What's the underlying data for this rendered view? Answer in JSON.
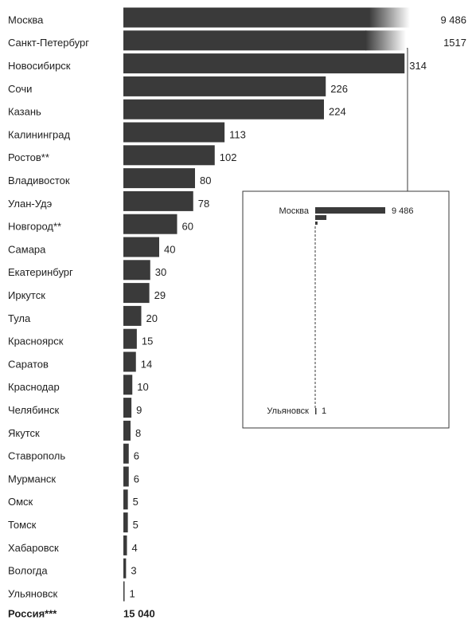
{
  "chart_data": {
    "type": "bar",
    "orientation": "horizontal",
    "categories": [
      "Москва",
      "Санкт-Петербург",
      "Новосибирск",
      "Сочи",
      "Казань",
      "Калининград",
      "Ростов**",
      "Владивосток",
      "Улан-Удэ",
      "Новгород**",
      "Самара",
      "Екатеринбург",
      "Иркутск",
      "Тула",
      "Красноярск",
      "Саратов",
      "Краснодар",
      "Челябинск",
      "Якутск",
      "Ставрополь",
      "Мурманск",
      "Омск",
      "Томск",
      "Хабаровск",
      "Вологда",
      "Ульяновск"
    ],
    "values": [
      9486,
      1517,
      314,
      226,
      224,
      113,
      102,
      80,
      78,
      60,
      40,
      30,
      29,
      20,
      15,
      14,
      10,
      9,
      8,
      6,
      6,
      5,
      5,
      4,
      3,
      1
    ],
    "value_labels": [
      "9 486",
      "1517",
      "314",
      "226",
      "224",
      "113",
      "102",
      "80",
      "78",
      "60",
      "40",
      "30",
      "29",
      "20",
      "15",
      "14",
      "10",
      "9",
      "8",
      "6",
      "6",
      "5",
      "5",
      "4",
      "3",
      "1"
    ],
    "total": {
      "label": "Россия***",
      "value": 15040,
      "value_label": "15 040"
    },
    "axis_break": {
      "broken_bars": [
        "Москва",
        "Санкт-Петербург"
      ],
      "style": "fade"
    },
    "inset": {
      "top_label": "Москва",
      "top_value": "9 486",
      "bottom_label": "Ульяновск",
      "bottom_value": "1"
    },
    "colors": {
      "bar": "#3a3a3a",
      "text": "#1f1f1f",
      "background": "#ffffff",
      "inset_border": "#3a3a3a"
    }
  }
}
